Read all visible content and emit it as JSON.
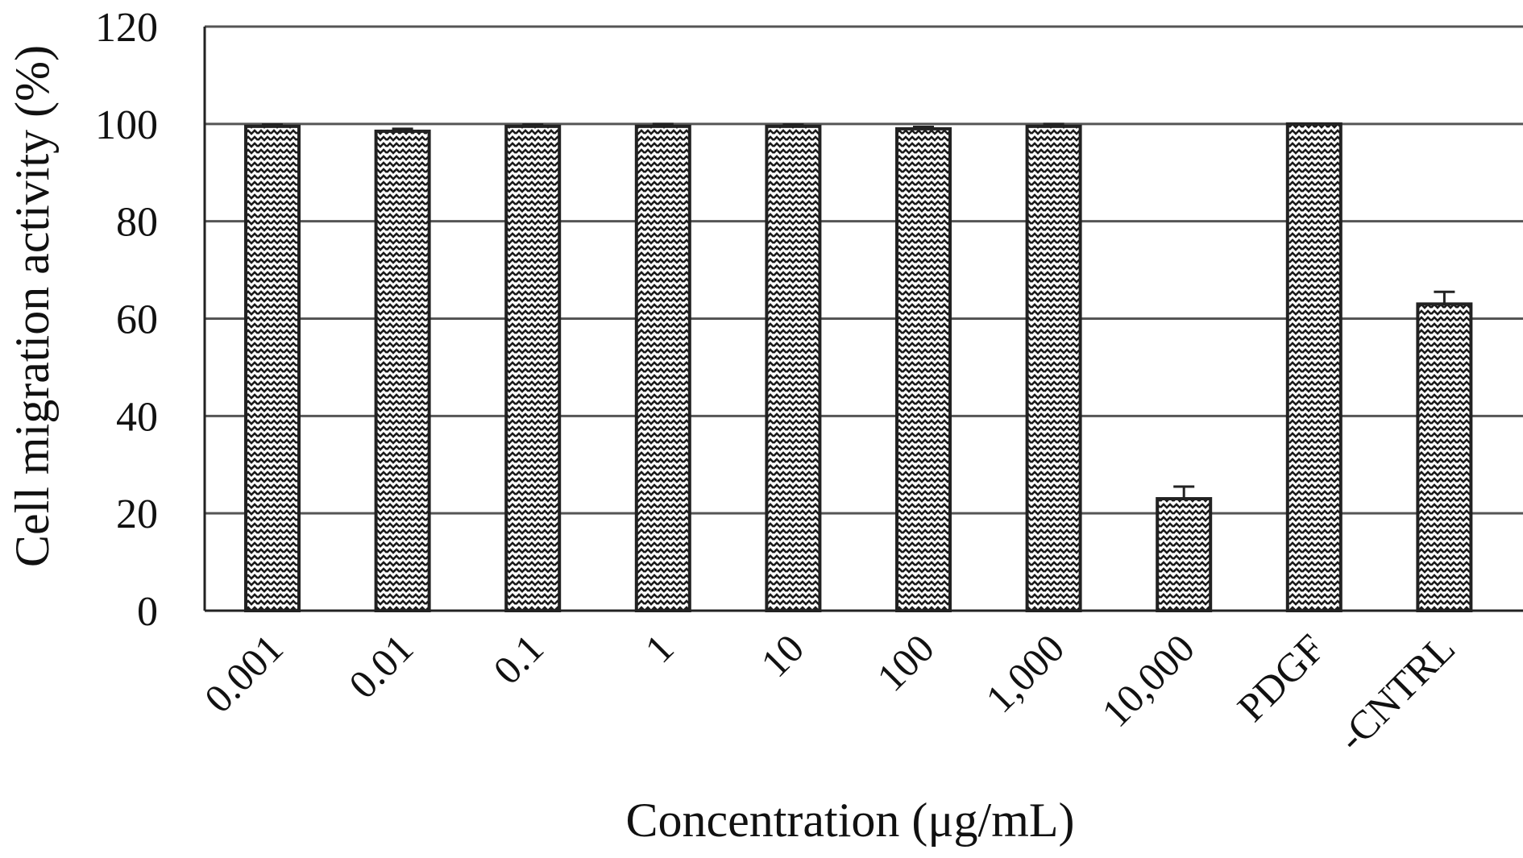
{
  "chart_data": {
    "type": "bar",
    "title": "",
    "xlabel": "Concentration (μg/mL)",
    "ylabel": "Cell migration activity (%)",
    "ylim": [
      0,
      120
    ],
    "yticks": [
      "0",
      "20",
      "40",
      "60",
      "80",
      "100",
      "120"
    ],
    "grid": true,
    "categories": [
      "0.001",
      "0.01",
      "0.1",
      "1",
      "10",
      "100",
      "1,000",
      "10,000",
      "PDGF",
      "-CNTRL"
    ],
    "values": [
      99.5,
      98.5,
      99.5,
      99.5,
      99.5,
      99,
      99.5,
      23,
      100,
      63
    ],
    "errors": [
      0.4,
      0.5,
      0.4,
      0.5,
      0.4,
      0.4,
      0.5,
      2.5,
      0,
      2.5
    ],
    "colors": {
      "bar_fill": "#ffffff",
      "bar_pattern": "#1a1a1a",
      "bar_edge": "#222222",
      "grid": "#555555"
    }
  }
}
